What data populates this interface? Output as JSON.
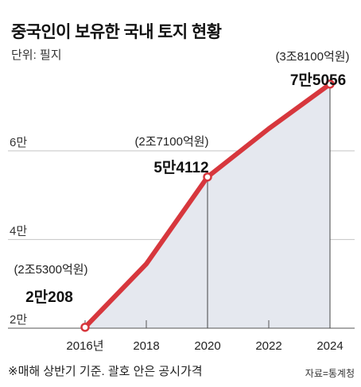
{
  "chart_data": {
    "type": "line",
    "title": "중국인이 보유한 국내 토지 현황",
    "unit_label": "단위: 필지",
    "xlabel": "",
    "ylabel": "",
    "x": [
      2016,
      2018,
      2020,
      2022,
      2024
    ],
    "x_tick_labels": [
      "2016년",
      "2018",
      "2020",
      "2022",
      "2024"
    ],
    "series": [
      {
        "values": [
          20208,
          34500,
          54112,
          65000,
          75056
        ]
      }
    ],
    "y_ticks": [
      20000,
      40000,
      60000
    ],
    "y_tick_labels": [
      "2만",
      "4만",
      "6만"
    ],
    "ylim": [
      20000,
      77000
    ],
    "grid": true,
    "annotations": [
      {
        "x": 2016,
        "value_label": "2만208",
        "price_label": "(2조5300억원)"
      },
      {
        "x": 2020,
        "value_label": "5만4112",
        "price_label": "(2조7100억원)"
      },
      {
        "x": 2024,
        "value_label": "7만5056",
        "price_label": "(3조8100억원)"
      }
    ],
    "footnote": "※매해 상반기 기준. 괄호 안은 공시가격",
    "source": "자료=통계청",
    "colors": {
      "line": "#d7373d",
      "area": "#e5e8ef",
      "grid": "#c4c4c4",
      "marker_fill": "#ffffff"
    }
  }
}
